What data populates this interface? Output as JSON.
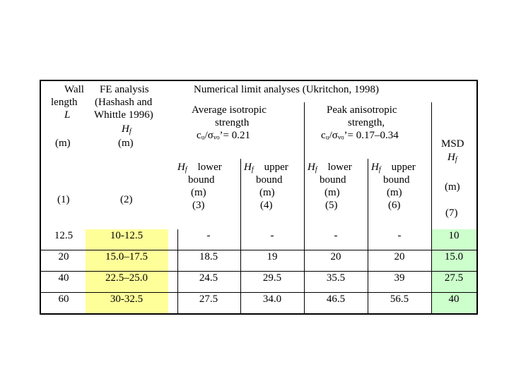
{
  "headers": {
    "col1": {
      "line1": "Wall",
      "line2": "length",
      "symbol": "L",
      "unit": "(m)",
      "num": "(1)"
    },
    "col2": {
      "line1": "FE analysis",
      "line2": "(Hashash and",
      "line3": "Whittle 1996)",
      "symbol": "H",
      "sub": "f",
      "unit": "(m)",
      "num": "(2)"
    },
    "numerical": "Numerical limit analyses (Ukritchon, 1998)",
    "avg": {
      "line1": "Average isotropic",
      "line2": "strength",
      "formula": "cᵤ/σᵥₒ’= 0.21"
    },
    "peak": {
      "line1": "Peak anisotropic",
      "line2": "strength,",
      "formula": "cᵤ/σᵥₒ’= 0.17–0.34"
    },
    "msd": {
      "line1": "MSD",
      "symbol": "H",
      "sub": "f",
      "unit": "(m)",
      "num": "(7)"
    },
    "sub3": {
      "symbol": "H",
      "sub": "f",
      "word": "lower",
      "line2": "bound",
      "unit": "(m)",
      "num": "(3)"
    },
    "sub4": {
      "symbol": "H",
      "sub": "f",
      "word": "upper",
      "line2": "bound",
      "unit": "(m)",
      "num": "(4)"
    },
    "sub5": {
      "symbol": "H",
      "sub": "f",
      "word": "lower",
      "line2": "bound",
      "unit": "(m)",
      "num": "(5)"
    },
    "sub6": {
      "symbol": "H",
      "sub": "f",
      "word": "upper",
      "line2": "bound",
      "unit": "(m)",
      "num": "(6)"
    }
  },
  "rows": [
    [
      "12.5",
      "10-12.5",
      "-",
      "-",
      "-",
      "-",
      "10"
    ],
    [
      "20",
      "15.0–17.5",
      "18.5",
      "19",
      "20",
      "20",
      "15.0"
    ],
    [
      "40",
      "22.5–25.0",
      "24.5",
      "29.5",
      "35.5",
      "39",
      "27.5"
    ],
    [
      "60",
      "30-32.5",
      "27.5",
      "34.0",
      "46.5",
      "56.5",
      "40"
    ]
  ],
  "colors": {
    "fe_highlight": "#ffff99",
    "msd_highlight": "#ccffcc"
  }
}
